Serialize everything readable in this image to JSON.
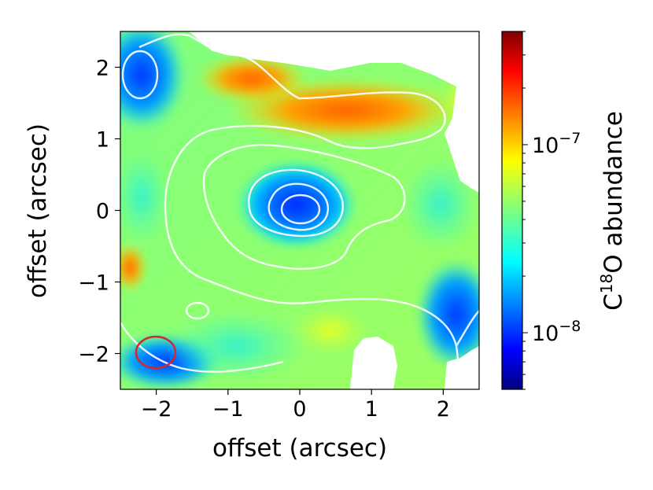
{
  "chart_data": {
    "type": "heatmap",
    "xlabel": "offset (arcsec)",
    "ylabel": "offset (arcsec)",
    "xlim": [
      -2.5,
      2.5
    ],
    "ylim": [
      -2.5,
      2.5
    ],
    "x_ticks": [
      -2,
      -1,
      0,
      1,
      2
    ],
    "y_ticks": [
      -2,
      -1,
      0,
      1,
      2
    ],
    "x_tick_labels": [
      "−2",
      "−1",
      "0",
      "1",
      "2"
    ],
    "y_tick_labels": [
      "−2",
      "−1",
      "0",
      "1",
      "2"
    ],
    "grid": false,
    "colormap": "jet",
    "colorbar": {
      "label_prefix": "C",
      "label_superscript": "18",
      "label_suffix": "O abundance",
      "scale": "log",
      "range": [
        5e-09,
        4e-07
      ],
      "major_ticks": [
        1e-08,
        1e-07
      ],
      "major_tick_labels": [
        {
          "base": "10",
          "exp": "−8"
        },
        {
          "base": "10",
          "exp": "−7"
        }
      ]
    },
    "abundance_features": [
      {
        "description": "central depletion peak",
        "x": 0.0,
        "y": 0.0,
        "value": 1.2e-08
      },
      {
        "description": "northwest low region",
        "x": -2.2,
        "y": 1.8,
        "value": 1e-08
      },
      {
        "description": "northern high ridge",
        "x": 0.6,
        "y": 1.3,
        "value": 2e-07
      },
      {
        "description": "southeast low region",
        "x": 2.0,
        "y": -1.9,
        "value": 1e-08
      },
      {
        "description": "background",
        "value": 5e-08
      }
    ],
    "contour_color": "#ffffff",
    "beam": {
      "center": [
        -2.0,
        -2.0
      ],
      "color": "#d62728"
    }
  }
}
